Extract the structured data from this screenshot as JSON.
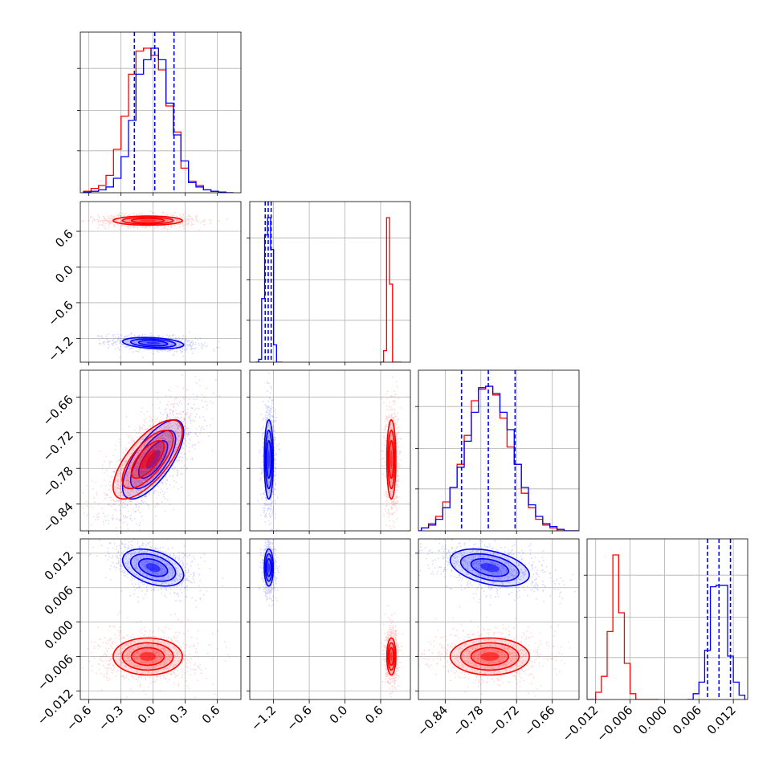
{
  "chart_data": {
    "type": "corner",
    "variables": 4,
    "series": [
      {
        "name": "",
        "color": "#0000ff"
      },
      {
        "name": "",
        "color": "#ff0000"
      }
    ],
    "ticks": [
      {
        "values": [
          -0.6,
          -0.3,
          0.0,
          0.3,
          0.6
        ],
        "labels": [
          "−0.6",
          "−0.3",
          "0.0",
          "0.3",
          "0.6"
        ]
      },
      {
        "values": [
          -1.2,
          -0.6,
          0.0,
          0.6
        ],
        "labels": [
          "−1.2",
          "−0.6",
          "0.0",
          "0.6"
        ]
      },
      {
        "values": [
          -0.84,
          -0.78,
          -0.72,
          -0.66
        ],
        "labels": [
          "−0.84",
          "−0.78",
          "−0.72",
          "−0.66"
        ]
      },
      {
        "values": [
          -0.012,
          -0.006,
          0.0,
          0.006,
          0.012
        ],
        "labels": [
          "−0.012",
          "−0.006",
          "0.000",
          "0.006",
          "0.012"
        ]
      }
    ],
    "ranges": [
      [
        -0.68,
        0.82
      ],
      [
        -1.6,
        1.1
      ],
      [
        -0.885,
        -0.615
      ],
      [
        -0.0135,
        0.0145
      ]
    ],
    "quantile_lines": [
      [
        -0.175,
        0.015,
        0.195
      ],
      [
        -1.34,
        -1.29,
        -1.24
      ],
      [
        -0.8125,
        -0.7675,
        -0.7225
      ],
      [
        0.0075,
        0.0095,
        0.0115
      ]
    ],
    "histograms": {
      "0": {
        "edges": [
          -0.65,
          -0.58,
          -0.51,
          -0.44,
          -0.37,
          -0.3,
          -0.23,
          -0.16,
          -0.09,
          -0.02,
          0.05,
          0.12,
          0.19,
          0.26,
          0.33,
          0.4,
          0.47,
          0.54,
          0.61,
          0.68,
          0.75
        ],
        "blue": [
          0.005,
          0.01,
          0.02,
          0.04,
          0.1,
          0.25,
          0.5,
          0.82,
          0.92,
          1.0,
          0.92,
          0.62,
          0.4,
          0.22,
          0.07,
          0.04,
          0.02,
          0.01,
          0.005,
          0.0
        ],
        "red": [
          0.01,
          0.03,
          0.05,
          0.12,
          0.3,
          0.53,
          0.82,
          0.98,
          1.0,
          0.95,
          0.85,
          0.6,
          0.42,
          0.17,
          0.08,
          0.05,
          0.02,
          0.01,
          0.005,
          0.0
        ]
      },
      "1": {
        "edges": [
          -1.5,
          -1.45,
          -1.4,
          -1.35,
          -1.3,
          -1.25,
          -1.2,
          -1.15,
          -1.1,
          -1.05
        ],
        "blue": [
          0.0,
          0.02,
          0.44,
          0.88,
          1.0,
          0.78,
          0.12,
          0.0,
          0.0
        ],
        "edges_red": [
          0.6,
          0.65,
          0.7,
          0.75,
          0.8,
          0.85,
          0.9,
          0.95
        ],
        "red": [
          0.0,
          0.08,
          1.0,
          0.54,
          0.0,
          0.0,
          0.0
        ]
      },
      "2": {
        "edges": [
          -0.892,
          -0.88,
          -0.868,
          -0.856,
          -0.844,
          -0.832,
          -0.82,
          -0.808,
          -0.796,
          -0.784,
          -0.772,
          -0.76,
          -0.748,
          -0.736,
          -0.724,
          -0.712,
          -0.7,
          -0.688,
          -0.676,
          -0.664,
          -0.652,
          -0.64,
          -0.628,
          -0.616
        ],
        "blue": [
          0.0,
          0.02,
          0.04,
          0.08,
          0.16,
          0.3,
          0.44,
          0.62,
          0.82,
          0.99,
          1.0,
          0.95,
          0.82,
          0.7,
          0.46,
          0.3,
          0.18,
          0.1,
          0.05,
          0.03,
          0.01,
          0.0,
          0.0
        ],
        "red": [
          0.0,
          0.02,
          0.05,
          0.1,
          0.2,
          0.3,
          0.46,
          0.66,
          0.9,
          0.98,
          1.0,
          0.94,
          0.78,
          0.58,
          0.46,
          0.26,
          0.16,
          0.08,
          0.04,
          0.02,
          0.0,
          0.0,
          0.0
        ]
      },
      "3": {
        "edges_blue": [
          0.004,
          0.005,
          0.006,
          0.007,
          0.008,
          0.009,
          0.01,
          0.011,
          0.012,
          0.013,
          0.014
        ],
        "blue": [
          0.0,
          0.04,
          0.12,
          0.34,
          0.78,
          0.79,
          0.79,
          0.3,
          0.12,
          0.03
        ],
        "edges_red": [
          -0.014,
          -0.013,
          -0.012,
          -0.011,
          -0.01,
          -0.009,
          -0.008,
          -0.007,
          -0.006,
          -0.005,
          -0.004,
          -0.003,
          -0.002,
          -0.001
        ],
        "red": [
          0.0,
          0.0,
          0.05,
          0.16,
          0.47,
          1.0,
          0.6,
          0.25,
          0.04,
          0.0,
          0.0,
          0.0,
          0.0
        ]
      }
    },
    "scatter_2d": [
      {
        "row": 1,
        "col": 0,
        "blue": {
          "mean": [
            0.0,
            -1.28
          ],
          "sd": [
            0.15,
            0.05
          ],
          "rho": -0.3
        },
        "red": {
          "mean": [
            -0.05,
            0.78
          ],
          "sd": [
            0.17,
            0.04
          ],
          "rho": 0.0
        }
      },
      {
        "row": 2,
        "col": 0,
        "blue": {
          "mean": [
            0.0,
            -0.765
          ],
          "sd": [
            0.15,
            0.035
          ],
          "rho": 0.7
        },
        "red": {
          "mean": [
            -0.05,
            -0.765
          ],
          "sd": [
            0.17,
            0.035
          ],
          "rho": 0.7
        }
      },
      {
        "row": 2,
        "col": 1,
        "blue": {
          "mean": [
            -1.28,
            -0.765
          ],
          "sd": [
            0.04,
            0.035
          ],
          "rho": 0.0
        },
        "red": {
          "mean": [
            0.78,
            -0.765
          ],
          "sd": [
            0.04,
            0.035
          ],
          "rho": 0.0
        }
      },
      {
        "row": 3,
        "col": 0,
        "blue": {
          "mean": [
            0.0,
            0.0095
          ],
          "sd": [
            0.15,
            0.0017
          ],
          "rho": -0.4
        },
        "red": {
          "mean": [
            -0.05,
            -0.006
          ],
          "sd": [
            0.17,
            0.0017
          ],
          "rho": 0.0
        }
      },
      {
        "row": 3,
        "col": 1,
        "blue": {
          "mean": [
            -1.28,
            0.0095
          ],
          "sd": [
            0.04,
            0.0017
          ],
          "rho": 0.0
        },
        "red": {
          "mean": [
            0.78,
            -0.006
          ],
          "sd": [
            0.04,
            0.0017
          ],
          "rho": 0.0
        }
      },
      {
        "row": 3,
        "col": 2,
        "blue": {
          "mean": [
            -0.765,
            0.0095
          ],
          "sd": [
            0.035,
            0.0017
          ],
          "rho": -0.4
        },
        "red": {
          "mean": [
            -0.765,
            -0.006
          ],
          "sd": [
            0.035,
            0.0017
          ],
          "rho": 0.0
        }
      }
    ],
    "grid": true
  }
}
